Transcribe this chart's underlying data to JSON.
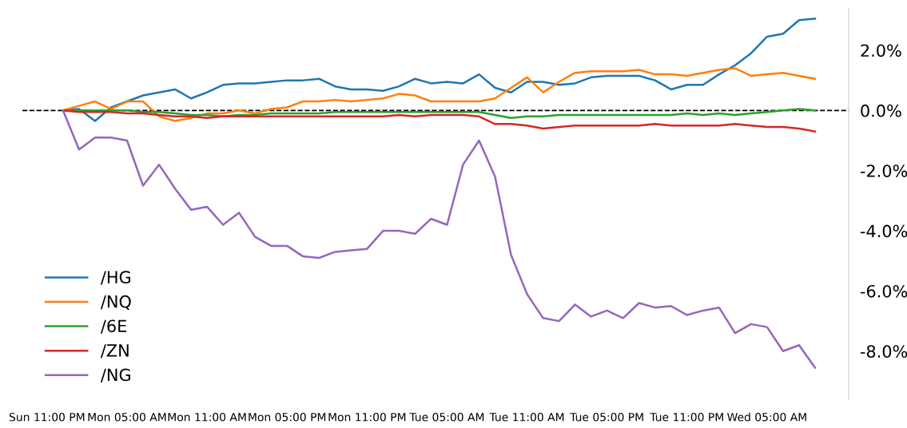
{
  "chart_data": {
    "type": "line",
    "categories": [
      "Sun 11:00 PM",
      null,
      null,
      null,
      null,
      "Mon 05:00 AM",
      null,
      null,
      null,
      null,
      "Mon 11:00 AM",
      null,
      null,
      null,
      null,
      "Mon 05:00 PM",
      null,
      null,
      null,
      null,
      "Mon 11:00 PM",
      null,
      null,
      null,
      null,
      "Tue 05:00 AM",
      null,
      null,
      null,
      null,
      "Tue 11:00 AM",
      null,
      null,
      null,
      null,
      "Tue 05:00 PM",
      null,
      null,
      null,
      null,
      "Tue 11:00 PM",
      null,
      null,
      null,
      null,
      "Wed 05:00 AM",
      null,
      null,
      null
    ],
    "series": [
      {
        "name": "/HG",
        "color": "#1f77b4",
        "values": [
          null,
          0,
          0.05,
          -0.35,
          0.1,
          0.3,
          0.5,
          0.6,
          0.7,
          0.4,
          0.6,
          0.85,
          0.9,
          0.9,
          0.95,
          1.0,
          1.0,
          1.05,
          0.8,
          0.7,
          0.7,
          0.65,
          0.8,
          1.05,
          0.9,
          0.95,
          0.9,
          1.2,
          0.75,
          0.6,
          0.95,
          0.95,
          0.85,
          0.9,
          1.1,
          1.15,
          1.15,
          1.15,
          1.0,
          0.7,
          0.85,
          0.85,
          1.2,
          1.5,
          1.9,
          2.45,
          2.55,
          3.0,
          3.05
        ]
      },
      {
        "name": "/NQ",
        "color": "#ff7f0e",
        "values": [
          null,
          0,
          0.15,
          0.3,
          0.05,
          0.3,
          0.3,
          -0.2,
          -0.35,
          -0.25,
          -0.1,
          -0.1,
          0.0,
          -0.1,
          0.05,
          0.1,
          0.3,
          0.3,
          0.35,
          0.3,
          0.35,
          0.4,
          0.55,
          0.5,
          0.3,
          0.3,
          0.3,
          0.3,
          0.4,
          0.75,
          1.1,
          0.6,
          0.95,
          1.25,
          1.3,
          1.3,
          1.3,
          1.35,
          1.2,
          1.2,
          1.15,
          1.25,
          1.35,
          1.4,
          1.15,
          1.2,
          1.25,
          1.15,
          1.05
        ]
      },
      {
        "name": "/6E",
        "color": "#2ca02c",
        "values": [
          null,
          0,
          0,
          0,
          0,
          0,
          -0.05,
          -0.05,
          -0.1,
          -0.15,
          -0.15,
          -0.2,
          -0.15,
          -0.15,
          -0.1,
          -0.1,
          -0.1,
          -0.1,
          -0.05,
          -0.05,
          -0.05,
          -0.05,
          -0.05,
          -0.05,
          -0.05,
          -0.05,
          -0.05,
          -0.05,
          -0.15,
          -0.25,
          -0.2,
          -0.2,
          -0.15,
          -0.15,
          -0.15,
          -0.15,
          -0.15,
          -0.15,
          -0.15,
          -0.15,
          -0.1,
          -0.15,
          -0.1,
          -0.15,
          -0.1,
          -0.05,
          0.0,
          0.05,
          0.0
        ]
      },
      {
        "name": "/ZN",
        "color": "#d62728",
        "values": [
          null,
          0,
          -0.05,
          -0.05,
          -0.05,
          -0.1,
          -0.1,
          -0.15,
          -0.2,
          -0.2,
          -0.25,
          -0.2,
          -0.2,
          -0.2,
          -0.2,
          -0.2,
          -0.2,
          -0.2,
          -0.2,
          -0.2,
          -0.2,
          -0.2,
          -0.15,
          -0.2,
          -0.15,
          -0.15,
          -0.15,
          -0.2,
          -0.45,
          -0.45,
          -0.5,
          -0.6,
          -0.55,
          -0.5,
          -0.5,
          -0.5,
          -0.5,
          -0.5,
          -0.45,
          -0.5,
          -0.5,
          -0.5,
          -0.5,
          -0.45,
          -0.5,
          -0.55,
          -0.55,
          -0.6,
          -0.7
        ]
      },
      {
        "name": "/NG",
        "color": "#9467bd",
        "values": [
          null,
          0,
          -1.3,
          -0.9,
          -0.9,
          -1.0,
          -2.5,
          -1.8,
          -2.6,
          -3.3,
          -3.2,
          -3.8,
          -3.4,
          -4.2,
          -4.5,
          -4.5,
          -4.85,
          -4.9,
          -4.7,
          -4.65,
          -4.6,
          -4.0,
          -4.0,
          -4.1,
          -3.6,
          -3.8,
          -1.8,
          -1.0,
          -2.2,
          -4.8,
          -6.1,
          -6.9,
          -7.0,
          -6.45,
          -6.85,
          -6.65,
          -6.9,
          -6.4,
          -6.55,
          -6.5,
          -6.8,
          -6.65,
          -6.55,
          -7.4,
          -7.1,
          -7.2,
          -8.0,
          -7.8,
          -8.55
        ]
      }
    ],
    "ylim": [
      -9.6,
      3.4
    ],
    "yticks": [
      {
        "value": 2,
        "label": "2.0%"
      },
      {
        "value": 0,
        "label": "0.0%"
      },
      {
        "value": -2,
        "label": "-2.0%"
      },
      {
        "value": -4,
        "label": "-4.0%"
      },
      {
        "value": -6,
        "label": "-6.0%"
      },
      {
        "value": -8,
        "label": "-8.0%"
      }
    ],
    "ref_lines": [
      {
        "axis": "y",
        "value": 0,
        "color": "#000000",
        "line_style": "dashed"
      }
    ],
    "grid": false,
    "legend": "bottom left"
  }
}
